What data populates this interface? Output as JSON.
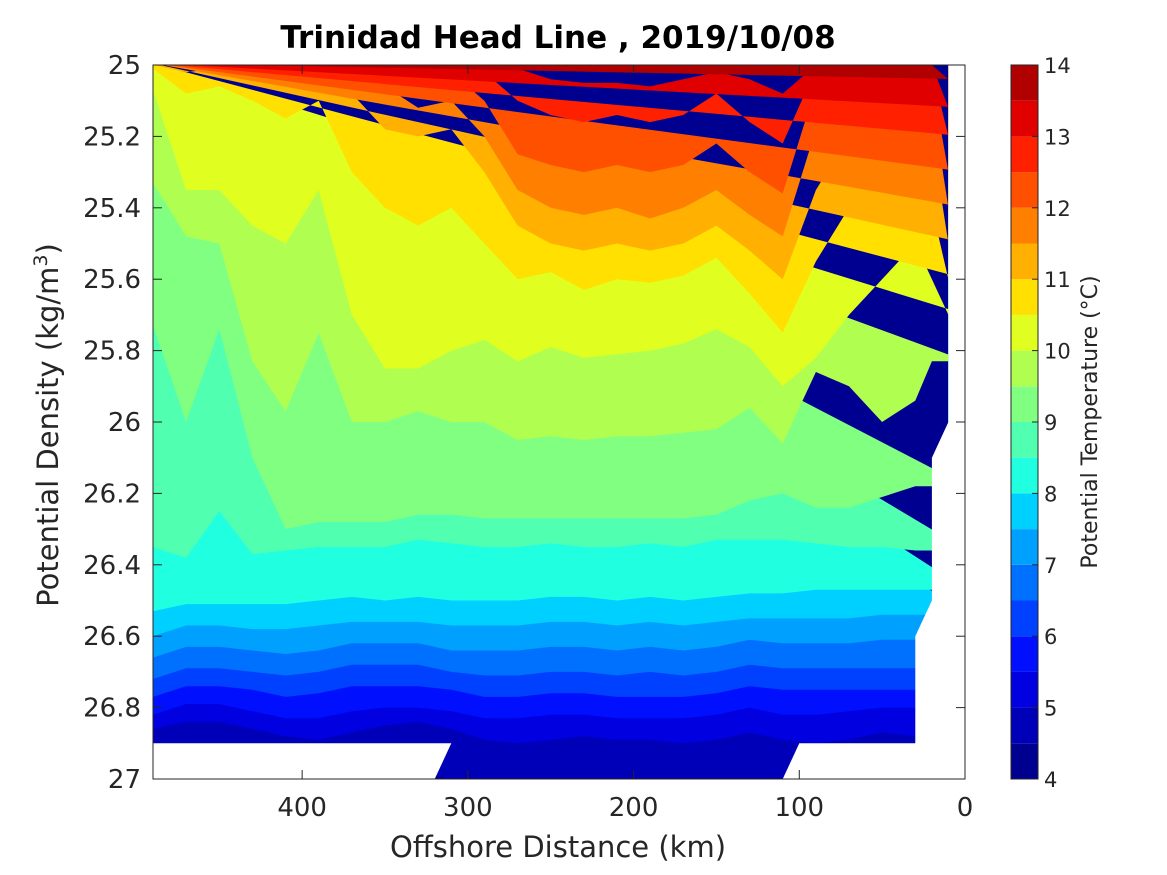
{
  "chart_data": {
    "type": "heatmap",
    "subtype": "filled-contour",
    "title": "Trinidad Head Line , 2019/10/08",
    "xlabel": "Offshore Distance (km)",
    "ylabel": "Potential Density (kg/m",
    "ylabel_sup": "3",
    "ylabel_close": ")",
    "xlim": [
      490,
      0
    ],
    "ylim": [
      25,
      27
    ],
    "x_reversed": true,
    "y_reversed": true,
    "x_ticks": [
      400,
      300,
      200,
      100,
      0
    ],
    "x_tick_labels": [
      "400",
      "300",
      "200",
      "100",
      "0"
    ],
    "y_ticks": [
      25,
      25.2,
      25.4,
      25.6,
      25.8,
      26,
      26.2,
      26.4,
      26.6,
      26.8,
      27
    ],
    "y_tick_labels": [
      "25",
      "25.2",
      "25.4",
      "25.6",
      "25.8",
      "26",
      "26.2",
      "26.4",
      "26.6",
      "26.8",
      "27"
    ],
    "colorbar": {
      "label": "Potential Temperature (°C)",
      "range": [
        4,
        14
      ],
      "ticks": [
        4,
        5,
        6,
        7,
        8,
        9,
        10,
        11,
        12,
        13,
        14
      ],
      "tick_labels": [
        "4",
        "5",
        "6",
        "7",
        "8",
        "9",
        "10",
        "11",
        "12",
        "13",
        "14"
      ],
      "levels": [
        4,
        4.5,
        5,
        5.5,
        6,
        6.5,
        7,
        7.5,
        8,
        8.5,
        9,
        9.5,
        10,
        10.5,
        11,
        11.5,
        12,
        12.5,
        13,
        13.5,
        14
      ],
      "colors": [
        "#000090",
        "#0000b8",
        "#0000e0",
        "#0010ff",
        "#0040ff",
        "#0070ff",
        "#00a0ff",
        "#00d0ff",
        "#20ffe0",
        "#50ffb0",
        "#80ff80",
        "#b0ff50",
        "#e0ff20",
        "#ffe000",
        "#ffb000",
        "#ff8000",
        "#ff5000",
        "#ff2000",
        "#e00000",
        "#b00000"
      ]
    },
    "boundaries": {
      "x": [
        490,
        470,
        450,
        430,
        410,
        390,
        370,
        350,
        330,
        310,
        290,
        270,
        250,
        230,
        210,
        190,
        170,
        150,
        130,
        110,
        90,
        70,
        50,
        30,
        20,
        10
      ],
      "lines": [
        {
          "level": 4.5,
          "y": [
            26.96,
            26.96,
            26.96,
            26.96,
            26.96,
            26.96,
            26.96,
            26.96,
            26.98,
            27.0,
            27.0,
            27.0,
            27.0,
            27.0,
            27.0,
            27.0,
            27.0,
            27.0,
            27.0,
            27.0,
            26.96,
            26.96,
            26.96,
            26.96,
            26.96,
            26.96
          ]
        },
        {
          "level": 5,
          "y": [
            26.86,
            26.84,
            26.84,
            26.86,
            26.88,
            26.89,
            26.87,
            26.85,
            26.84,
            26.86,
            26.89,
            26.9,
            26.89,
            26.88,
            26.89,
            26.89,
            26.9,
            26.89,
            26.87,
            26.89,
            26.9,
            26.89,
            26.87,
            26.88,
            26.88,
            26.88
          ]
        },
        {
          "level": 5.5,
          "y": [
            26.82,
            26.79,
            26.79,
            26.81,
            26.83,
            26.83,
            26.81,
            26.8,
            26.8,
            26.81,
            26.83,
            26.83,
            26.82,
            26.82,
            26.83,
            26.83,
            26.83,
            26.82,
            26.8,
            26.82,
            26.82,
            26.81,
            26.8,
            26.8,
            26.8,
            26.8
          ]
        },
        {
          "level": 6,
          "y": [
            26.77,
            26.74,
            26.74,
            26.75,
            26.77,
            26.76,
            26.74,
            26.74,
            26.74,
            26.75,
            26.77,
            26.77,
            26.76,
            26.76,
            26.77,
            26.77,
            26.77,
            26.76,
            26.74,
            26.75,
            26.75,
            26.75,
            26.75,
            26.75,
            26.75,
            26.75
          ]
        },
        {
          "level": 6.5,
          "y": [
            26.72,
            26.69,
            26.69,
            26.7,
            26.71,
            26.7,
            26.68,
            26.68,
            26.68,
            26.7,
            26.71,
            26.71,
            26.7,
            26.7,
            26.71,
            26.7,
            26.71,
            26.7,
            26.68,
            26.69,
            26.69,
            26.69,
            26.69,
            26.69,
            26.69,
            26.69
          ]
        },
        {
          "level": 7,
          "y": [
            26.66,
            26.63,
            26.63,
            26.64,
            26.65,
            26.64,
            26.62,
            26.62,
            26.62,
            26.64,
            26.64,
            26.64,
            26.63,
            26.63,
            26.64,
            26.63,
            26.64,
            26.63,
            26.61,
            26.62,
            26.62,
            26.62,
            26.61,
            26.61,
            26.61,
            26.61
          ]
        },
        {
          "level": 7.5,
          "y": [
            26.6,
            26.57,
            26.57,
            26.58,
            26.58,
            26.57,
            26.56,
            26.56,
            26.56,
            26.57,
            26.57,
            26.57,
            26.56,
            26.56,
            26.57,
            26.56,
            26.57,
            26.56,
            26.55,
            26.55,
            26.55,
            26.55,
            26.54,
            26.54,
            26.54,
            26.54
          ]
        },
        {
          "level": 8,
          "y": [
            26.53,
            26.51,
            26.51,
            26.51,
            26.51,
            26.5,
            26.49,
            26.5,
            26.49,
            26.5,
            26.5,
            26.5,
            26.49,
            26.49,
            26.5,
            26.49,
            26.5,
            26.49,
            26.48,
            26.48,
            26.47,
            26.47,
            26.47,
            26.47,
            26.47,
            26.47
          ]
        },
        {
          "level": 8.5,
          "y": [
            26.35,
            26.38,
            26.25,
            26.37,
            26.36,
            26.35,
            26.35,
            26.35,
            26.33,
            26.34,
            26.35,
            26.35,
            26.34,
            26.35,
            26.35,
            26.34,
            26.35,
            26.33,
            26.33,
            26.33,
            26.34,
            26.35,
            26.35,
            26.36,
            26.36,
            26.36
          ]
        },
        {
          "level": 9,
          "y": [
            25.73,
            26.0,
            25.74,
            26.1,
            26.3,
            26.28,
            26.28,
            26.28,
            26.26,
            26.26,
            26.27,
            26.27,
            26.27,
            26.27,
            26.27,
            26.27,
            26.27,
            26.26,
            26.22,
            26.2,
            26.24,
            26.24,
            26.21,
            26.18,
            26.18,
            26.18
          ]
        },
        {
          "level": 9.5,
          "y": [
            25.33,
            25.48,
            25.5,
            25.83,
            25.97,
            25.75,
            26.0,
            26.0,
            25.97,
            26.0,
            26.0,
            26.05,
            26.04,
            26.05,
            26.04,
            26.04,
            26.03,
            26.02,
            25.96,
            26.06,
            25.86,
            25.9,
            26.0,
            25.94,
            25.83,
            25.83
          ]
        },
        {
          "level": 10,
          "y": [
            25.07,
            25.35,
            25.35,
            25.45,
            25.5,
            25.35,
            25.7,
            25.85,
            25.85,
            25.8,
            25.77,
            25.83,
            25.79,
            25.82,
            25.81,
            25.8,
            25.78,
            25.74,
            25.79,
            25.9,
            25.82,
            25.7,
            25.6,
            25.5,
            25.6,
            25.7
          ]
        },
        {
          "level": 10.5,
          "y": [
            25.01,
            25.08,
            25.06,
            25.1,
            25.15,
            25.1,
            25.3,
            25.4,
            25.45,
            25.4,
            25.5,
            25.6,
            25.58,
            25.63,
            25.6,
            25.61,
            25.59,
            25.54,
            25.64,
            25.75,
            25.55,
            25.4,
            25.3,
            25.2,
            25.4,
            25.6
          ]
        },
        {
          "level": 11,
          "y": [
            25.0,
            25.02,
            25.01,
            25.0,
            25.02,
            25.0,
            25.08,
            25.18,
            25.2,
            25.18,
            25.3,
            25.45,
            25.5,
            25.52,
            25.5,
            25.52,
            25.5,
            25.45,
            25.52,
            25.6,
            25.35,
            25.2,
            25.1,
            25.05,
            25.2,
            25.5
          ]
        },
        {
          "level": 11.5,
          "y": [
            25.0,
            25.0,
            25.0,
            25.0,
            25.0,
            25.0,
            25.0,
            25.06,
            25.12,
            25.1,
            25.2,
            25.35,
            25.4,
            25.42,
            25.4,
            25.43,
            25.4,
            25.35,
            25.42,
            25.48,
            25.18,
            25.05,
            25.02,
            25.0,
            25.1,
            25.4
          ]
        },
        {
          "level": 12,
          "y": [
            25.0,
            25.0,
            25.0,
            25.0,
            25.0,
            25.0,
            25.0,
            25.0,
            25.02,
            25.02,
            25.1,
            25.25,
            25.28,
            25.3,
            25.28,
            25.3,
            25.28,
            25.22,
            25.3,
            25.36,
            25.06,
            25.0,
            25.0,
            25.0,
            25.04,
            25.3
          ]
        },
        {
          "level": 12.5,
          "y": [
            25.0,
            25.0,
            25.0,
            25.0,
            25.0,
            25.0,
            25.0,
            25.0,
            25.0,
            25.0,
            25.02,
            25.1,
            25.14,
            25.16,
            25.14,
            25.16,
            25.14,
            25.08,
            25.16,
            25.22,
            25.01,
            25.0,
            25.0,
            25.0,
            25.01,
            25.2
          ]
        },
        {
          "level": 13,
          "y": [
            25.0,
            25.0,
            25.0,
            25.0,
            25.0,
            25.0,
            25.0,
            25.0,
            25.0,
            25.0,
            25.0,
            25.01,
            25.04,
            25.05,
            25.05,
            25.06,
            25.04,
            25.02,
            25.04,
            25.08,
            25.0,
            25.0,
            25.0,
            25.0,
            25.0,
            25.12
          ]
        },
        {
          "level": 13.5,
          "y": [
            25.0,
            25.0,
            25.0,
            25.0,
            25.0,
            25.0,
            25.0,
            25.0,
            25.0,
            25.0,
            25.0,
            25.0,
            25.0,
            25.0,
            25.0,
            25.0,
            25.0,
            25.0,
            25.0,
            25.0,
            25.0,
            25.0,
            25.0,
            25.0,
            25.0,
            25.04
          ]
        }
      ],
      "top_band_color": "#ffe000",
      "top_band_level": 10.5
    },
    "no_data_regions": [
      {
        "name": "bottom-left",
        "x": [
          490,
          490,
          320,
          310
        ],
        "y": [
          26.9,
          27.0,
          27.0,
          26.9
        ]
      },
      {
        "name": "bottom-right",
        "x": [
          110,
          100,
          0,
          0,
          30,
          30
        ],
        "y": [
          27.0,
          26.9,
          26.9,
          27.0,
          27.0,
          27.0
        ]
      },
      {
        "name": "right-edge",
        "x": [
          10,
          0,
          0,
          30,
          30,
          20,
          20,
          10
        ],
        "y": [
          25.0,
          25.0,
          27.0,
          27.0,
          26.6,
          26.5,
          26.1,
          26.0
        ]
      }
    ]
  }
}
